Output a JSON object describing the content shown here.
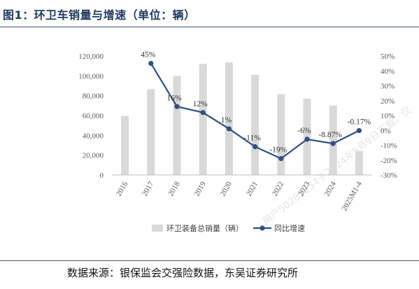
{
  "title": "图1：环卫车销量与增速（单位：辆）",
  "source": "数据来源：银保监会交强险数据，东吴证券研究所",
  "watermark": "用户50285254于2024年5月9日下载，仅",
  "colors": {
    "bar": "#d9d9d9",
    "line": "#2f4f7f",
    "title": "#1f3a60"
  },
  "chart_data": {
    "type": "bar+line",
    "categories": [
      "2016",
      "2017",
      "2018",
      "2019",
      "2020",
      "2021",
      "2022",
      "2023",
      "2024",
      "2025M1-4"
    ],
    "series": [
      {
        "name": "环卫装备总销量（辆）",
        "type": "bar",
        "axis": "left",
        "values": [
          59500,
          86500,
          100000,
          112000,
          113500,
          101000,
          81500,
          77000,
          70000,
          24000
        ]
      },
      {
        "name": "同比增速",
        "type": "line",
        "axis": "right",
        "unit": "%",
        "values": [
          null,
          45,
          16,
          12,
          1,
          -11,
          -19,
          -6,
          -8.87,
          -0.17
        ],
        "labels": [
          null,
          "45%",
          "16%",
          "12%",
          "1%",
          "-11%",
          "-19%",
          "-6%",
          "-8.87%",
          "-0.17%"
        ]
      }
    ],
    "y_left": {
      "min": 0,
      "max": 120000,
      "step": 20000,
      "ticks": [
        "0",
        "20,000",
        "40,000",
        "60,000",
        "80,000",
        "100,000",
        "120,000"
      ]
    },
    "y_right": {
      "min": -30,
      "max": 50,
      "step": 10,
      "ticks": [
        "-30%",
        "-20%",
        "-10%",
        "0%",
        "10%",
        "20%",
        "30%",
        "40%",
        "50%"
      ]
    },
    "grid": false,
    "legend": "bottom"
  }
}
